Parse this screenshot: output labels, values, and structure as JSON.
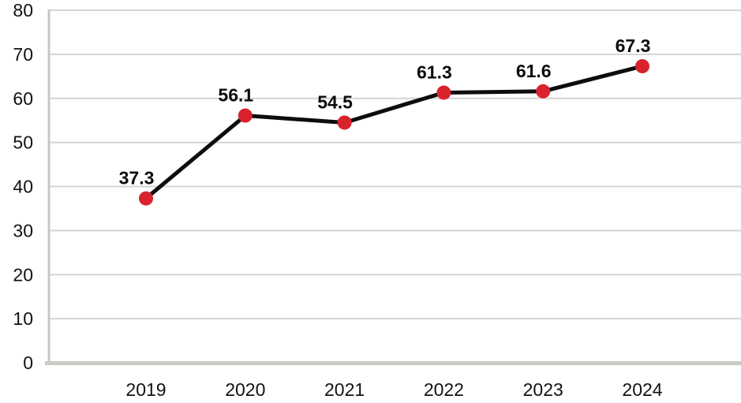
{
  "chart_data": {
    "type": "line",
    "title": "",
    "xlabel": "",
    "ylabel": "",
    "categories": [
      "2019",
      "2020",
      "2021",
      "2022",
      "2023",
      "2024"
    ],
    "series": [
      {
        "name": "value",
        "values": [
          37.3,
          56.1,
          54.5,
          61.3,
          61.6,
          67.3
        ],
        "data_labels": [
          "37.3",
          "56.1",
          "54.5",
          "61.3",
          "61.6",
          "67.3"
        ]
      }
    ],
    "ylim": [
      0,
      80
    ],
    "yticks": [
      0,
      10,
      20,
      30,
      40,
      50,
      60,
      70,
      80
    ],
    "grid": true,
    "legend": false,
    "colors": {
      "line": "#0d0d0d",
      "marker": "#d8232f",
      "gridline": "#d4d4d4",
      "axis_left": "#c9c6c1",
      "axis_bottom": "#cdcac4",
      "tick_text": "#121212",
      "background": "#ffffff"
    }
  }
}
